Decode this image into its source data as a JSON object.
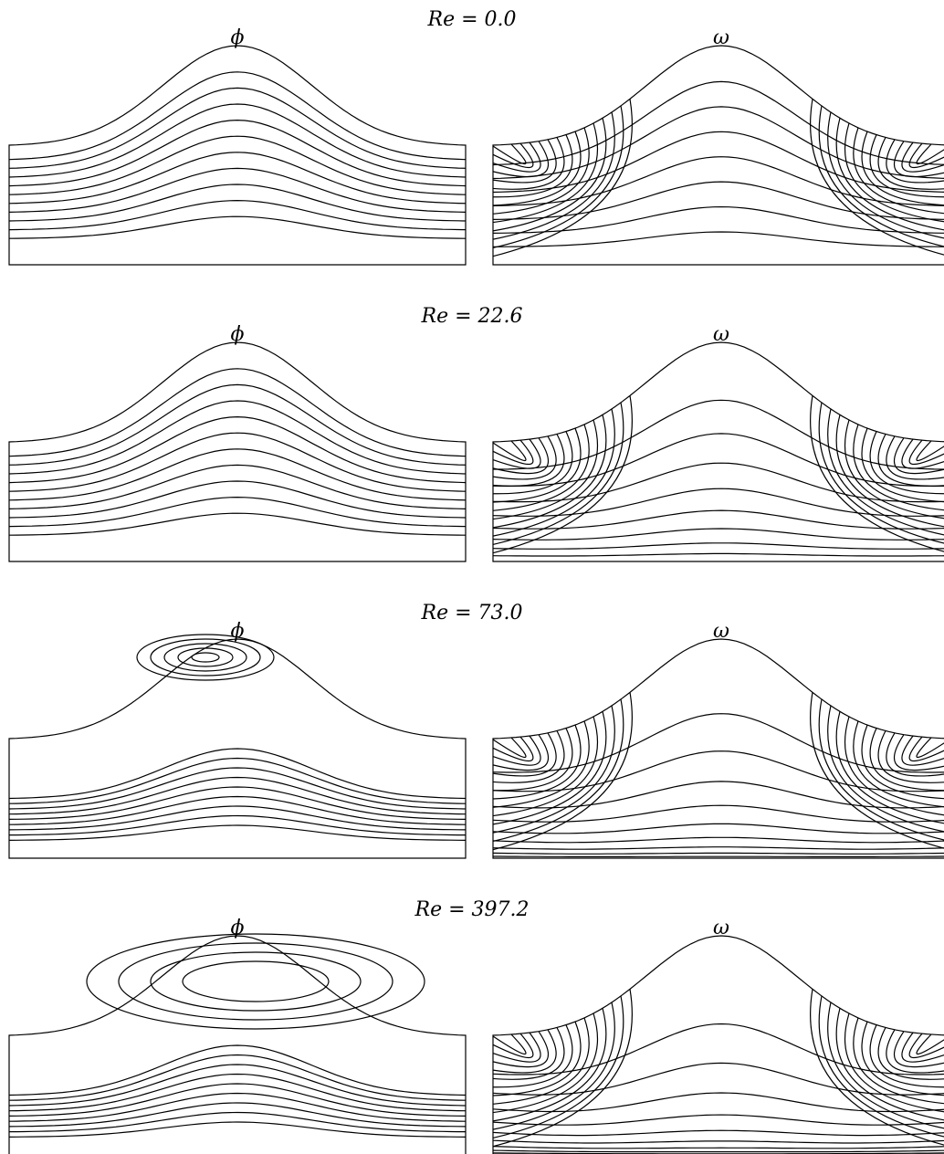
{
  "panels": [
    {
      "title": "Re = 0.0",
      "left_label": "ϕ",
      "right_label": "ω"
    },
    {
      "title": "Re = 22.6",
      "left_label": "ϕ",
      "right_label": "ω"
    },
    {
      "title": "Re = 73.0",
      "left_label": "ϕ",
      "right_label": "ω"
    },
    {
      "title": "Re = 397.2",
      "left_label": "ϕ",
      "right_label": "ω"
    }
  ]
}
